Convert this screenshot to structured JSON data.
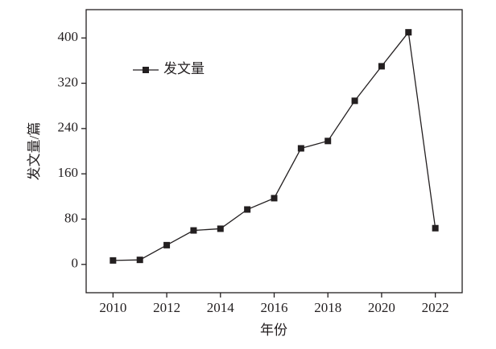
{
  "chart_data": {
    "type": "line",
    "x_label": "年份",
    "y_label": "发文量/篇",
    "x": [
      2010,
      2011,
      2012,
      2013,
      2014,
      2015,
      2016,
      2017,
      2018,
      2019,
      2020,
      2021,
      2022
    ],
    "series": [
      {
        "name": "发文量",
        "color": "#231f20",
        "values": [
          7,
          8,
          34,
          60,
          63,
          97,
          117,
          205,
          218,
          289,
          350,
          410,
          64
        ]
      }
    ],
    "xlim": [
      2009,
      2023
    ],
    "xticks": [
      2010,
      2012,
      2014,
      2016,
      2018,
      2020,
      2022
    ],
    "ylim": [
      -50,
      450
    ],
    "yticks": [
      0,
      80,
      160,
      240,
      320,
      400
    ],
    "grid": false,
    "legend": "upper left"
  }
}
